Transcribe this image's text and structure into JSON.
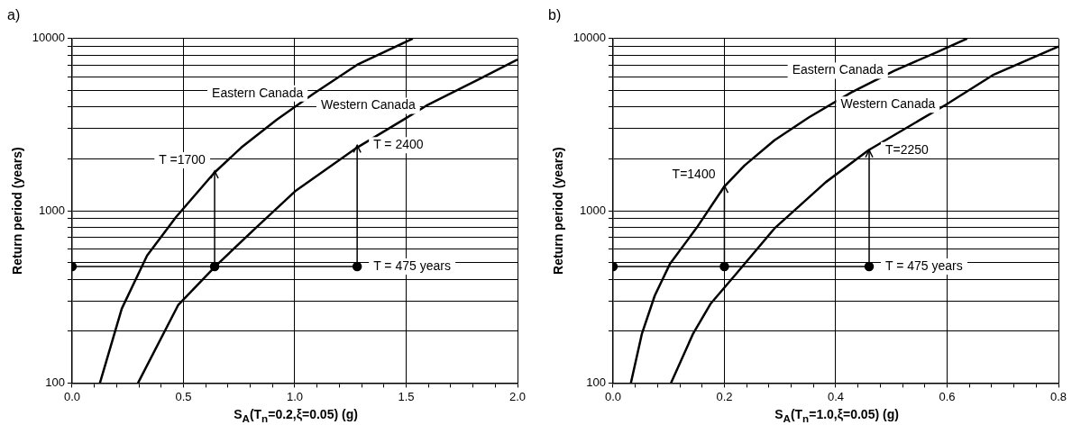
{
  "chart_data": [
    {
      "type": "line",
      "title": "a)",
      "xlabel": "S$_{A}$(T$_{n}$=0.2,ξ=0.05) (g)",
      "ylabel": "Return period (years)",
      "log": "y",
      "grid": true,
      "legend": false,
      "xlim": [
        0,
        2
      ],
      "ylim": [
        100,
        10000
      ],
      "xticks": [
        {
          "value": 0,
          "label": "0.0"
        },
        {
          "value": 0.1,
          "label": null
        },
        {
          "value": 0.2,
          "label": null
        },
        {
          "value": 0.3,
          "label": null
        },
        {
          "value": 0.4,
          "label": null
        },
        {
          "value": 0.5,
          "label": "0.5"
        },
        {
          "value": 0.6,
          "label": null
        },
        {
          "value": 0.7,
          "label": null
        },
        {
          "value": 0.8,
          "label": null
        },
        {
          "value": 0.9,
          "label": null
        },
        {
          "value": 1,
          "label": "1.0"
        },
        {
          "value": 1.1,
          "label": null
        },
        {
          "value": 1.2,
          "label": null
        },
        {
          "value": 1.3,
          "label": null
        },
        {
          "value": 1.4,
          "label": null
        },
        {
          "value": 1.5,
          "label": "1.5"
        },
        {
          "value": 1.6,
          "label": null
        },
        {
          "value": 1.7,
          "label": null
        },
        {
          "value": 1.8,
          "label": null
        },
        {
          "value": 1.9,
          "label": null
        },
        {
          "value": 2,
          "label": "2.0"
        }
      ],
      "yticks": [
        100,
        {
          "value": 200,
          "label": null
        },
        {
          "value": 300,
          "label": null
        },
        {
          "value": 400,
          "label": null
        },
        {
          "value": 500,
          "label": null
        },
        {
          "value": 600,
          "label": null
        },
        {
          "value": 700,
          "label": null
        },
        {
          "value": 800,
          "label": null
        },
        {
          "value": 900,
          "label": null
        },
        1000,
        {
          "value": 2000,
          "label": null
        },
        {
          "value": 3000,
          "label": null
        },
        {
          "value": 4000,
          "label": null
        },
        {
          "value": 5000,
          "label": null
        },
        {
          "value": 6000,
          "label": null
        },
        {
          "value": 7000,
          "label": null
        },
        {
          "value": 8000,
          "label": null
        },
        {
          "value": 9000,
          "label": null
        },
        10000
      ],
      "series": [
        {
          "name": "Eastern Canada",
          "color": "#000000",
          "x": [
            0.125,
            0.223,
            0.337,
            0.467,
            0.638,
            0.76,
            0.92,
            1.086,
            1.28,
            1.53
          ],
          "values": [
            100,
            270,
            550,
            920,
            1660,
            2330,
            3390,
            4800,
            7040,
            10000
          ]
        },
        {
          "name": "Western Canada",
          "color": "#000000",
          "x": [
            0.296,
            0.476,
            0.646,
            0.84,
            1.005,
            1.28,
            1.49,
            1.59,
            1.82,
            2.0
          ],
          "values": [
            100,
            283,
            480,
            830,
            1310,
            2330,
            3390,
            4070,
            5750,
            7560
          ]
        },
        {
          "color": "#000000",
          "marker": "circle",
          "x": [
            0,
            0.64,
            1.28
          ],
          "values": [
            475,
            475,
            475
          ]
        },
        {
          "color": "#000000",
          "x": [
            0.64,
            0.64
          ],
          "values": [
            475,
            1700
          ]
        },
        {
          "color": "#000000",
          "x": [
            1.28,
            1.28
          ],
          "values": [
            475,
            2400
          ]
        }
      ],
      "annotations": [
        {
          "text": "T =1700",
          "x": 0.64,
          "y": 1700
        },
        {
          "text": "T = 2400",
          "x": 1.28,
          "y": 2400
        },
        {
          "text": "T = 475 years",
          "x": 1.28,
          "y": 475
        }
      ]
    },
    {
      "type": "line",
      "title": "b)",
      "xlabel": "S$_{A}$(T$_{n}$=1.0,ξ=0.05) (g)",
      "ylabel": "Return period (years)",
      "log": "y",
      "grid": true,
      "legend": false,
      "xlim": [
        0,
        0.8
      ],
      "ylim": [
        100,
        10000
      ],
      "xticks": [
        {
          "value": 0,
          "label": "0.0"
        },
        {
          "value": 0.04,
          "label": null
        },
        {
          "value": 0.08,
          "label": null
        },
        {
          "value": 0.12,
          "label": null
        },
        {
          "value": 0.16,
          "label": null
        },
        {
          "value": 0.2,
          "label": "0.2"
        },
        {
          "value": 0.24,
          "label": null
        },
        {
          "value": 0.28,
          "label": null
        },
        {
          "value": 0.32,
          "label": null
        },
        {
          "value": 0.36,
          "label": null
        },
        {
          "value": 0.4,
          "label": "0.4"
        },
        {
          "value": 0.44,
          "label": null
        },
        {
          "value": 0.48,
          "label": null
        },
        {
          "value": 0.52,
          "label": null
        },
        {
          "value": 0.56,
          "label": null
        },
        {
          "value": 0.6,
          "label": "0.6"
        },
        {
          "value": 0.64,
          "label": null
        },
        {
          "value": 0.68,
          "label": null
        },
        {
          "value": 0.72,
          "label": null
        },
        {
          "value": 0.76,
          "label": null
        },
        {
          "value": 0.8,
          "label": "0.8"
        }
      ],
      "yticks": [
        100,
        {
          "value": 200,
          "label": null
        },
        {
          "value": 300,
          "label": null
        },
        {
          "value": 400,
          "label": null
        },
        {
          "value": 500,
          "label": null
        },
        {
          "value": 600,
          "label": null
        },
        {
          "value": 700,
          "label": null
        },
        {
          "value": 800,
          "label": null
        },
        {
          "value": 900,
          "label": null
        },
        1000,
        {
          "value": 2000,
          "label": null
        },
        {
          "value": 3000,
          "label": null
        },
        {
          "value": 4000,
          "label": null
        },
        {
          "value": 5000,
          "label": null
        },
        {
          "value": 6000,
          "label": null
        },
        {
          "value": 7000,
          "label": null
        },
        {
          "value": 8000,
          "label": null
        },
        {
          "value": 9000,
          "label": null
        },
        10000
      ],
      "series": [
        {
          "name": "Eastern Canada",
          "color": "#000000",
          "x": [
            0.032,
            0.052,
            0.075,
            0.102,
            0.152,
            0.2,
            0.236,
            0.29,
            0.352,
            0.428,
            0.505,
            0.582,
            0.636
          ],
          "values": [
            100,
            194,
            322,
            490,
            812,
            1385,
            1830,
            2570,
            3490,
            4870,
            6500,
            8350,
            10000
          ]
        },
        {
          "name": "Western Canada",
          "color": "#000000",
          "x": [
            0.104,
            0.144,
            0.175,
            0.221,
            0.29,
            0.382,
            0.459,
            0.598,
            0.682,
            0.8
          ],
          "values": [
            100,
            194,
            288,
            430,
            790,
            1465,
            2250,
            4130,
            6130,
            9000
          ]
        },
        {
          "color": "#000000",
          "marker": "circle",
          "x": [
            0,
            0.2,
            0.46
          ],
          "values": [
            475,
            475,
            475
          ]
        },
        {
          "color": "#000000",
          "x": [
            0.2,
            0.2
          ],
          "values": [
            475,
            1400
          ]
        },
        {
          "color": "#000000",
          "x": [
            0.46,
            0.46
          ],
          "values": [
            475,
            2250
          ]
        }
      ],
      "annotations": [
        {
          "text": "T=1400",
          "x": 0.2,
          "y": 1400
        },
        {
          "text": "T=2250",
          "x": 0.46,
          "y": 2250
        },
        {
          "text": "T = 475 years",
          "x": 0.46,
          "y": 475
        }
      ]
    }
  ]
}
